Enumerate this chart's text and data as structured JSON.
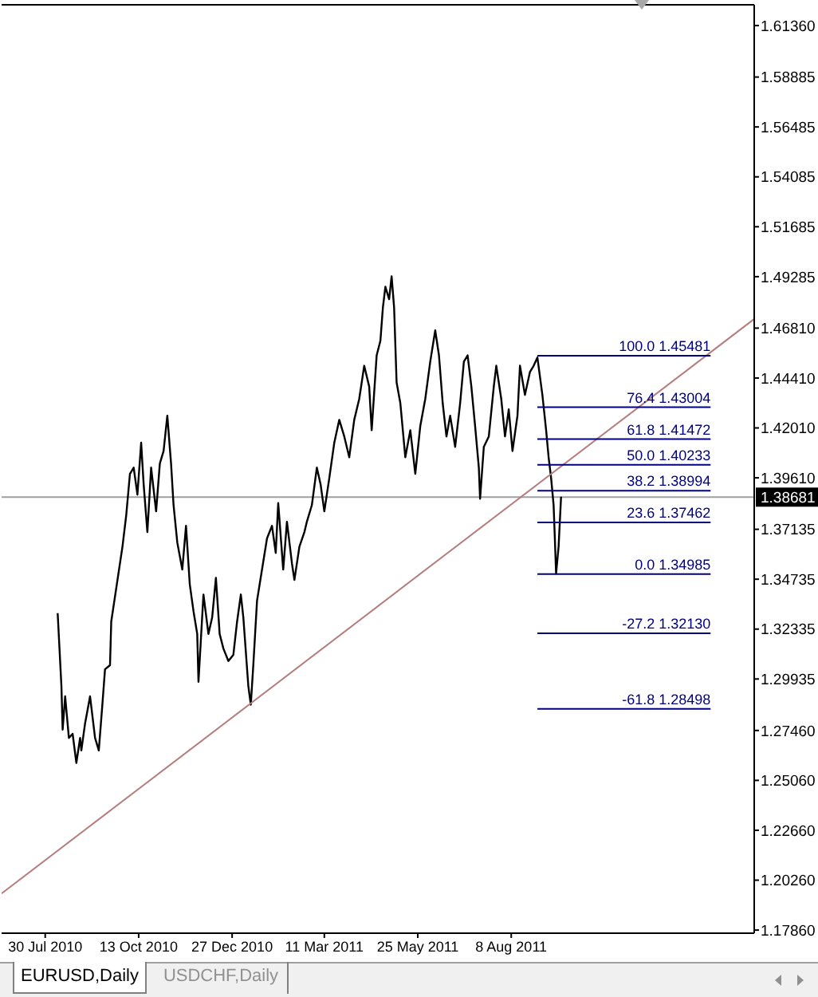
{
  "chart_data": {
    "type": "line",
    "xlim": [
      "2010-06-25",
      "2012-02-19"
    ],
    "xticks": [
      {
        "value": "2010-07-30",
        "label": "30 Jul 2010"
      },
      {
        "value": "2010-10-13",
        "label": "13 Oct 2010"
      },
      {
        "value": "2010-12-27",
        "label": "27 Dec 2010"
      },
      {
        "value": "2011-03-11",
        "label": "11 Mar 2011"
      },
      {
        "value": "2011-05-25",
        "label": "25 May 2011"
      },
      {
        "value": "2011-08-08",
        "label": "8 Aug 2011"
      }
    ],
    "ylim": [
      1.1771,
      1.6236
    ],
    "yticks": [
      {
        "value": 1.1786,
        "label": "1.17860"
      },
      {
        "value": 1.2026,
        "label": "1.20260"
      },
      {
        "value": 1.2266,
        "label": "1.22660"
      },
      {
        "value": 1.2506,
        "label": "1.25060"
      },
      {
        "value": 1.2746,
        "label": "1.27460"
      },
      1.29935,
      1.32335,
      1.34735,
      1.37135,
      {
        "value": 1.3961,
        "label": "1.39610"
      },
      {
        "value": 1.4201,
        "label": "1.42010"
      },
      {
        "value": 1.4441,
        "label": "1.44410"
      },
      {
        "value": 1.4681,
        "label": "1.46810"
      },
      1.49285,
      1.51685,
      1.54085,
      1.56485,
      1.58885,
      {
        "value": 1.6136,
        "label": "1.61360"
      }
    ],
    "series": [
      {
        "color": "#000000",
        "x": [
          "2010-08-09",
          "2010-08-12",
          "2010-08-13",
          "2010-08-15",
          "2010-08-18",
          "2010-08-21",
          "2010-08-24",
          "2010-08-27",
          "2010-08-28",
          "2010-08-31",
          "2010-09-04",
          "2010-09-08",
          "2010-09-11",
          "2010-09-14",
          "2010-09-16",
          "2010-09-20",
          "2010-09-21",
          "2010-09-26",
          "2010-09-30",
          "2010-10-03",
          "2010-10-06",
          "2010-10-09",
          "2010-10-12",
          "2010-10-15",
          "2010-10-17",
          "2010-10-20",
          "2010-10-23",
          "2010-10-27",
          "2010-10-30",
          "2010-11-02",
          "2010-11-05",
          "2010-11-08",
          "2010-11-10",
          "2010-11-13",
          "2010-11-17",
          "2010-11-20",
          "2010-11-23",
          "2010-11-26",
          "2010-11-29",
          "2010-11-30",
          "2010-12-04",
          "2010-12-08",
          "2010-12-11",
          "2010-12-14",
          "2010-12-17",
          "2010-12-20",
          "2010-12-24",
          "2010-12-28",
          "2010-12-31",
          "2011-01-03",
          "2011-01-05",
          "2011-01-09",
          "2011-01-11",
          "2011-01-13",
          "2011-01-16",
          "2011-01-20",
          "2011-01-24",
          "2011-01-28",
          "2011-01-31",
          "2011-02-02",
          "2011-02-06",
          "2011-02-09",
          "2011-02-13",
          "2011-02-15",
          "2011-02-19",
          "2011-02-23",
          "2011-02-25",
          "2011-03-01",
          "2011-03-05",
          "2011-03-08",
          "2011-03-11",
          "2011-03-15",
          "2011-03-19",
          "2011-03-23",
          "2011-03-27",
          "2011-03-31",
          "2011-04-04",
          "2011-04-08",
          "2011-04-12",
          "2011-04-16",
          "2011-04-18",
          "2011-04-22",
          "2011-04-25",
          "2011-04-27",
          "2011-04-29",
          "2011-05-02",
          "2011-05-04",
          "2011-05-06",
          "2011-05-08",
          "2011-05-11",
          "2011-05-15",
          "2011-05-19",
          "2011-05-23",
          "2011-05-27",
          "2011-05-31",
          "2011-06-04",
          "2011-06-08",
          "2011-06-11",
          "2011-06-14",
          "2011-06-17",
          "2011-06-20",
          "2011-06-24",
          "2011-06-28",
          "2011-07-01",
          "2011-07-04",
          "2011-07-07",
          "2011-07-10",
          "2011-07-13",
          "2011-07-14",
          "2011-07-17",
          "2011-07-21",
          "2011-07-25",
          "2011-07-27",
          "2011-07-31",
          "2011-08-03",
          "2011-08-06",
          "2011-08-09",
          "2011-08-13",
          "2011-08-15",
          "2011-08-19",
          "2011-08-23",
          "2011-08-26",
          "2011-08-29",
          "2011-09-02",
          "2011-09-05",
          "2011-09-07",
          "2011-09-09",
          "2011-09-11",
          "2011-09-12",
          "2011-09-13",
          "2011-09-15",
          "2011-09-17"
        ],
        "values": [
          1.331,
          1.296,
          1.275,
          1.291,
          1.271,
          1.273,
          1.259,
          1.271,
          1.265,
          1.278,
          1.291,
          1.271,
          1.265,
          1.288,
          1.304,
          1.306,
          1.327,
          1.347,
          1.363,
          1.378,
          1.398,
          1.401,
          1.388,
          1.413,
          1.393,
          1.37,
          1.401,
          1.38,
          1.403,
          1.409,
          1.426,
          1.403,
          1.383,
          1.365,
          1.352,
          1.373,
          1.345,
          1.332,
          1.321,
          1.298,
          1.34,
          1.321,
          1.329,
          1.348,
          1.321,
          1.314,
          1.308,
          1.311,
          1.327,
          1.34,
          1.329,
          1.296,
          1.287,
          1.306,
          1.337,
          1.352,
          1.367,
          1.373,
          1.36,
          1.384,
          1.352,
          1.375,
          1.355,
          1.347,
          1.363,
          1.37,
          1.375,
          1.383,
          1.401,
          1.393,
          1.38,
          1.396,
          1.413,
          1.424,
          1.416,
          1.406,
          1.424,
          1.434,
          1.45,
          1.44,
          1.419,
          1.455,
          1.462,
          1.478,
          1.488,
          1.482,
          1.493,
          1.478,
          1.442,
          1.432,
          1.406,
          1.419,
          1.398,
          1.421,
          1.434,
          1.452,
          1.467,
          1.455,
          1.432,
          1.416,
          1.426,
          1.411,
          1.432,
          1.452,
          1.455,
          1.44,
          1.421,
          1.401,
          1.386,
          1.411,
          1.416,
          1.44,
          1.45,
          1.434,
          1.416,
          1.429,
          1.409,
          1.426,
          1.45,
          1.436,
          1.447,
          1.45,
          1.454,
          1.436,
          1.419,
          1.406,
          1.396,
          1.383,
          1.367,
          1.35,
          1.363,
          1.387
        ]
      },
      {
        "color": "#b57c7c",
        "x": [
          "2010-06-25",
          "2012-02-19"
        ],
        "values": [
          1.1962,
          1.4725
        ]
      },
      {
        "name": "100.0 1.45481",
        "color": "#000080",
        "x": [
          "2011-08-29",
          "2012-01-15"
        ],
        "values": [
          1.45481,
          1.45481
        ]
      },
      {
        "name": "76.4 1.43004",
        "color": "#000080",
        "x": [
          "2011-08-29",
          "2012-01-15"
        ],
        "values": [
          1.43004,
          1.43004
        ]
      },
      {
        "name": "61.8 1.41472",
        "color": "#000080",
        "x": [
          "2011-08-29",
          "2012-01-15"
        ],
        "values": [
          1.41472,
          1.41472
        ]
      },
      {
        "name": "50.0 1.40233",
        "color": "#000080",
        "x": [
          "2011-08-29",
          "2012-01-15"
        ],
        "values": [
          1.40233,
          1.40233
        ]
      },
      {
        "name": "38.2 1.38994",
        "color": "#000080",
        "x": [
          "2011-08-29",
          "2012-01-15"
        ],
        "values": [
          1.38994,
          1.38994
        ]
      },
      {
        "name": "23.6 1.37462",
        "color": "#000080",
        "x": [
          "2011-08-29",
          "2012-01-15"
        ],
        "values": [
          1.37462,
          1.37462
        ]
      },
      {
        "name": "0.0 1.34985",
        "color": "#000080",
        "x": [
          "2011-08-29",
          "2012-01-15"
        ],
        "values": [
          1.34985,
          1.34985
        ]
      },
      {
        "name": "-27.2 1.32130",
        "color": "#000080",
        "x": [
          "2011-08-29",
          "2012-01-15"
        ],
        "values": [
          1.3213,
          1.3213
        ]
      },
      {
        "name": "-61.8 1.28498",
        "color": "#000080",
        "x": [
          "2011-08-29",
          "2012-01-15"
        ],
        "values": [
          1.28498,
          1.28498
        ]
      }
    ],
    "ref_lines": [
      {
        "axis": "y",
        "value": 1.38681,
        "label": "1.38681",
        "color": "#a0a0a0"
      }
    ],
    "annotations": [
      "EURUSD,Daily",
      "USDCHF,Daily"
    ]
  }
}
